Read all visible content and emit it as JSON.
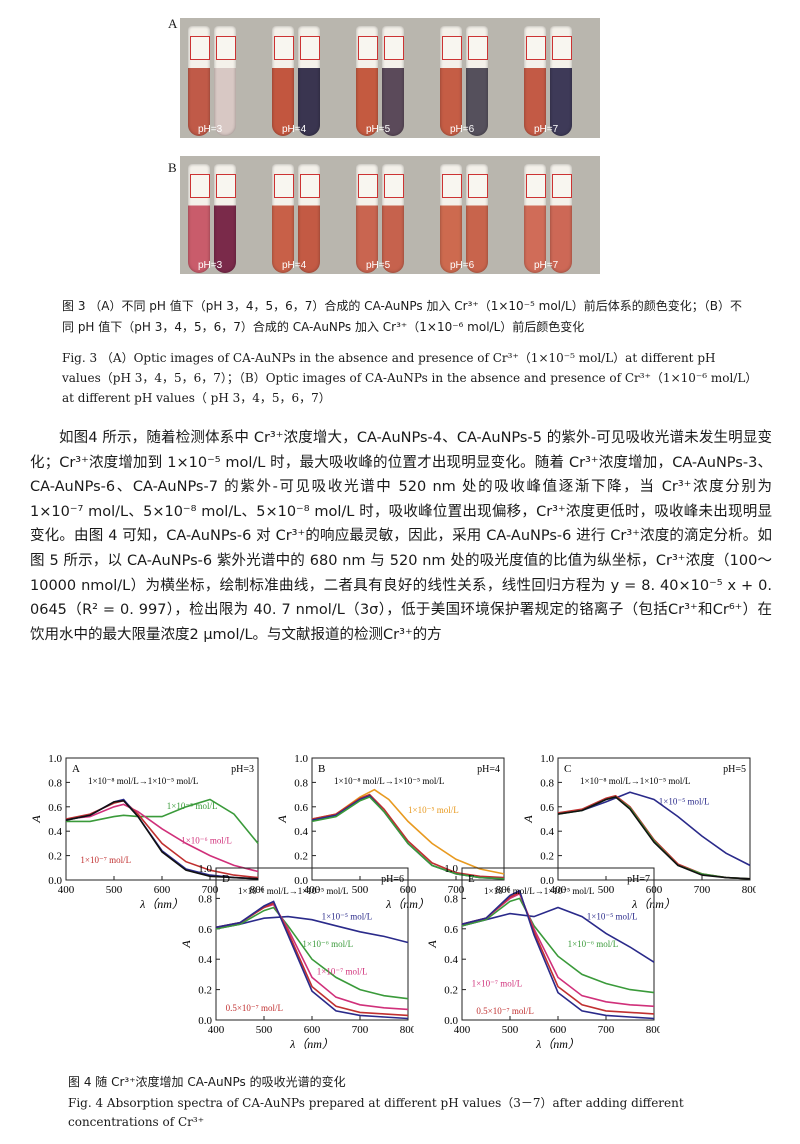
{
  "photos": {
    "A": {
      "label": "A",
      "ph_labels": [
        "pH=3",
        "pH=4",
        "pH=5",
        "pH=6",
        "pH=7"
      ],
      "tube_colors": [
        [
          "#c05a48",
          "#d8c8c4"
        ],
        [
          "#c2563f",
          "#3a3550"
        ],
        [
          "#c45a40",
          "#5b4a5a"
        ],
        [
          "#c55d45",
          "#55505c"
        ],
        [
          "#c35a45",
          "#3e3a58"
        ]
      ]
    },
    "B": {
      "label": "B",
      "ph_labels": [
        "pH=3",
        "pH=4",
        "pH=5",
        "pH=6",
        "pH=7"
      ],
      "tube_colors": [
        [
          "#c95c6b",
          "#7a2a4a"
        ],
        [
          "#c86048",
          "#c35a44"
        ],
        [
          "#c96550",
          "#c6624d"
        ],
        [
          "#cd6a4f",
          "#c8644c"
        ],
        [
          "#d06c58",
          "#cd6856"
        ]
      ]
    }
  },
  "fig3": {
    "zh": "图 3  （A）不同 pH 值下（pH 3，4，5，6，7）合成的 CA-AuNPs 加入 Cr³⁺（1×10⁻⁵ mol/L）前后体系的颜色变化；（B）不同 pH 值下（pH 3，4，5，6，7）合成的 CA-AuNPs 加入 Cr³⁺（1×10⁻⁶ mol/L）前后颜色变化",
    "en": "Fig. 3   （A）Optic images of CA-AuNPs in the absence and presence of Cr³⁺（1×10⁻⁵ mol/L）at different pH values（pH 3，4，5，6，7）；（B）Optic images of CA-AuNPs in the absence and presence of Cr³⁺（1×10⁻⁶ mol/L）at different pH values（ pH 3，4，5，6，7）"
  },
  "body": "如图4 所示，随着检测体系中 Cr³⁺浓度增大，CA-AuNPs-4、CA-AuNPs-5 的紫外-可见吸收光谱未发生明显变化；Cr³⁺浓度增加到 1×10⁻⁵ mol/L 时，最大吸收峰的位置才出现明显变化。随着 Cr³⁺浓度增加，CA-AuNPs-3、CA-AuNPs-6、CA-AuNPs-7 的紫外-可见吸收光谱中 520 nm 处的吸收峰值逐渐下降，当 Cr³⁺浓度分别为 1×10⁻⁷ mol/L、5×10⁻⁸ mol/L、5×10⁻⁸ mol/L 时，吸收峰位置出现偏移，Cr³⁺浓度更低时，吸收峰未出现明显变化。由图 4 可知，CA-AuNPs-6 对 Cr³⁺的响应最灵敏，因此，采用 CA-AuNPs-6 进行 Cr³⁺浓度的滴定分析。如图 5 所示，以 CA-AuNPs-6 紫外光谱中的 680 nm 与 520 nm 处的吸光度值的比值为纵坐标，Cr³⁺浓度（100～10000 nmol/L）为横坐标，绘制标准曲线，二者具有良好的线性关系，线性回归方程为 y = 8. 40×10⁻⁵ x + 0. 0645（R² = 0. 997），检出限为 40. 7 nmol/L（3σ），低于美国环境保护署规定的铬离子（包括Cr³⁺和Cr⁶⁺）在饮用水中的最大限量浓度2 μmol/L。与文献报道的检测Cr³⁺的方",
  "fig4": {
    "zh": "图 4   随 Cr³⁺浓度增加 CA-AuNPs 的吸收光谱的变化",
    "en": "Fig. 4    Absorption spectra of CA-AuNPs prepared at different pH values（3－7）after adding different concentrations of Cr³⁺"
  },
  "axis": {
    "xlabel": "λ（nm）",
    "ylabel": "A",
    "xticks": [
      "400",
      "500",
      "600",
      "700",
      "800"
    ],
    "yticks": [
      "0.0",
      "0.2",
      "0.4",
      "0.6",
      "0.8",
      "1.0"
    ]
  },
  "chart_data": [
    {
      "type": "line",
      "panel": "A",
      "ph": "pH=3",
      "range_label": "1×10⁻⁸ mol/L→1×10⁻⁵ mol/L",
      "xlim": [
        400,
        800
      ],
      "ylim": [
        0,
        1
      ],
      "annotations": [
        {
          "text": "1×10⁻⁵ mol/L",
          "color": "#3a9a3a"
        },
        {
          "text": "1×10⁻⁶ mol/L",
          "color": "#d0307a"
        },
        {
          "text": "1×10⁻⁷ mol/L",
          "color": "#c03030"
        }
      ],
      "series": [
        {
          "color": "#3a9a3a",
          "x": [
            400,
            450,
            500,
            520,
            550,
            600,
            650,
            700,
            750,
            800
          ],
          "y": [
            0.48,
            0.48,
            0.52,
            0.53,
            0.52,
            0.52,
            0.6,
            0.66,
            0.54,
            0.3
          ]
        },
        {
          "color": "#d0307a",
          "x": [
            400,
            450,
            500,
            520,
            550,
            600,
            650,
            700,
            750,
            800
          ],
          "y": [
            0.5,
            0.52,
            0.6,
            0.62,
            0.56,
            0.42,
            0.3,
            0.2,
            0.12,
            0.07
          ]
        },
        {
          "color": "#c03030",
          "x": [
            400,
            450,
            500,
            520,
            550,
            600,
            650,
            700,
            750,
            800
          ],
          "y": [
            0.5,
            0.54,
            0.63,
            0.65,
            0.54,
            0.3,
            0.15,
            0.08,
            0.04,
            0.02
          ]
        },
        {
          "color": "#2a2a8a",
          "x": [
            400,
            450,
            500,
            520,
            550,
            600,
            650,
            700,
            750,
            800
          ],
          "y": [
            0.49,
            0.53,
            0.64,
            0.66,
            0.52,
            0.24,
            0.09,
            0.04,
            0.02,
            0.01
          ]
        },
        {
          "color": "#111111",
          "x": [
            400,
            450,
            500,
            520,
            550,
            600,
            650,
            700,
            750,
            800
          ],
          "y": [
            0.49,
            0.53,
            0.64,
            0.65,
            0.52,
            0.23,
            0.08,
            0.03,
            0.02,
            0.01
          ]
        }
      ]
    },
    {
      "type": "line",
      "panel": "B",
      "ph": "pH=4",
      "range_label": "1×10⁻⁸ mol/L→1×10⁻⁵ mol/L",
      "xlim": [
        400,
        800
      ],
      "ylim": [
        0,
        1
      ],
      "annotations": [
        {
          "text": "1×10⁻⁵ mol/L",
          "color": "#e89a20"
        }
      ],
      "series": [
        {
          "color": "#e89a20",
          "x": [
            400,
            450,
            500,
            530,
            560,
            600,
            650,
            700,
            750,
            800
          ],
          "y": [
            0.5,
            0.54,
            0.68,
            0.74,
            0.66,
            0.48,
            0.3,
            0.17,
            0.09,
            0.05
          ]
        },
        {
          "color": "#c03030",
          "x": [
            400,
            450,
            500,
            520,
            550,
            600,
            650,
            700,
            750,
            800
          ],
          "y": [
            0.5,
            0.54,
            0.67,
            0.7,
            0.58,
            0.32,
            0.14,
            0.06,
            0.03,
            0.02
          ]
        },
        {
          "color": "#2a2a8a",
          "x": [
            400,
            450,
            500,
            520,
            550,
            600,
            650,
            700,
            750,
            800
          ],
          "y": [
            0.49,
            0.53,
            0.66,
            0.69,
            0.56,
            0.3,
            0.12,
            0.05,
            0.02,
            0.01
          ]
        },
        {
          "color": "#3a9a3a",
          "x": [
            400,
            450,
            500,
            520,
            550,
            600,
            650,
            700,
            750,
            800
          ],
          "y": [
            0.48,
            0.52,
            0.65,
            0.68,
            0.56,
            0.3,
            0.12,
            0.05,
            0.02,
            0.01
          ]
        }
      ]
    },
    {
      "type": "line",
      "panel": "C",
      "ph": "pH=5",
      "range_label": "1×10⁻⁸ mol/L→1×10⁻⁵ mol/L",
      "xlim": [
        400,
        800
      ],
      "ylim": [
        0,
        1
      ],
      "annotations": [
        {
          "text": "1×10⁻⁵ mol/L",
          "color": "#2a2a8a"
        }
      ],
      "series": [
        {
          "color": "#2a2a8a",
          "x": [
            400,
            450,
            500,
            550,
            600,
            650,
            700,
            750,
            800
          ],
          "y": [
            0.55,
            0.57,
            0.64,
            0.72,
            0.66,
            0.52,
            0.36,
            0.22,
            0.12
          ]
        },
        {
          "color": "#c03030",
          "x": [
            400,
            450,
            500,
            520,
            550,
            600,
            650,
            700,
            750,
            800
          ],
          "y": [
            0.55,
            0.58,
            0.67,
            0.69,
            0.6,
            0.33,
            0.13,
            0.05,
            0.02,
            0.01
          ]
        },
        {
          "color": "#3a9a3a",
          "x": [
            400,
            450,
            500,
            520,
            550,
            600,
            650,
            700,
            750,
            800
          ],
          "y": [
            0.54,
            0.57,
            0.66,
            0.68,
            0.59,
            0.32,
            0.12,
            0.05,
            0.02,
            0.01
          ]
        },
        {
          "color": "#111111",
          "x": [
            400,
            450,
            500,
            520,
            550,
            600,
            650,
            700,
            750,
            800
          ],
          "y": [
            0.54,
            0.57,
            0.66,
            0.68,
            0.58,
            0.31,
            0.12,
            0.04,
            0.02,
            0.01
          ]
        }
      ]
    },
    {
      "type": "line",
      "panel": "D",
      "ph": "pH=6",
      "range_label": "1×10⁻⁸ mol/L→1×10⁻⁵ mol/L",
      "xlim": [
        400,
        800
      ],
      "ylim": [
        0,
        1
      ],
      "annotations": [
        {
          "text": "1×10⁻⁵ mol/L",
          "color": "#2a2a8a"
        },
        {
          "text": "1×10⁻⁶ mol/L",
          "color": "#3a9a3a"
        },
        {
          "text": "1×10⁻⁷ mol/L",
          "color": "#d0307a"
        },
        {
          "text": "0.5×10⁻⁷ mol/L",
          "color": "#c03030"
        }
      ],
      "series": [
        {
          "color": "#2a2a8a",
          "x": [
            400,
            450,
            500,
            550,
            600,
            650,
            700,
            750,
            800
          ],
          "y": [
            0.6,
            0.63,
            0.67,
            0.68,
            0.66,
            0.62,
            0.58,
            0.55,
            0.51
          ]
        },
        {
          "color": "#3a9a3a",
          "x": [
            400,
            450,
            500,
            520,
            550,
            600,
            650,
            700,
            750,
            800
          ],
          "y": [
            0.6,
            0.63,
            0.72,
            0.74,
            0.62,
            0.4,
            0.28,
            0.2,
            0.16,
            0.14
          ]
        },
        {
          "color": "#d0307a",
          "x": [
            400,
            450,
            500,
            520,
            550,
            600,
            650,
            700,
            750,
            800
          ],
          "y": [
            0.61,
            0.64,
            0.74,
            0.76,
            0.6,
            0.28,
            0.15,
            0.1,
            0.08,
            0.07
          ]
        },
        {
          "color": "#c03030",
          "x": [
            400,
            450,
            500,
            520,
            550,
            600,
            650,
            700,
            750,
            800
          ],
          "y": [
            0.61,
            0.64,
            0.74,
            0.77,
            0.58,
            0.22,
            0.09,
            0.05,
            0.04,
            0.03
          ]
        },
        {
          "color": "#2a2a8a",
          "x": [
            400,
            450,
            500,
            520,
            550,
            600,
            650,
            700,
            750,
            800
          ],
          "y": [
            0.61,
            0.64,
            0.75,
            0.78,
            0.56,
            0.19,
            0.06,
            0.03,
            0.02,
            0.01
          ]
        }
      ]
    },
    {
      "type": "line",
      "panel": "E",
      "ph": "pH=7",
      "range_label": "1×10⁻⁸ mol/L→1×10⁻⁵ mol/L",
      "xlim": [
        400,
        800
      ],
      "ylim": [
        0,
        1
      ],
      "annotations": [
        {
          "text": "1×10⁻⁵ mol/L",
          "color": "#2a2a8a"
        },
        {
          "text": "1×10⁻⁶ mol/L",
          "color": "#3a9a3a"
        },
        {
          "text": "1×10⁻⁷ mol/L",
          "color": "#d0307a"
        },
        {
          "text": "0.5×10⁻⁷ mol/L",
          "color": "#c03030"
        }
      ],
      "series": [
        {
          "color": "#2a2a8a",
          "x": [
            400,
            450,
            500,
            550,
            600,
            650,
            700,
            750,
            800
          ],
          "y": [
            0.62,
            0.66,
            0.7,
            0.68,
            0.74,
            0.68,
            0.57,
            0.48,
            0.38
          ]
        },
        {
          "color": "#3a9a3a",
          "x": [
            400,
            450,
            500,
            520,
            550,
            600,
            650,
            700,
            750,
            800
          ],
          "y": [
            0.62,
            0.66,
            0.78,
            0.8,
            0.62,
            0.42,
            0.3,
            0.24,
            0.2,
            0.18
          ]
        },
        {
          "color": "#d0307a",
          "x": [
            400,
            450,
            500,
            520,
            550,
            600,
            650,
            700,
            750,
            800
          ],
          "y": [
            0.63,
            0.67,
            0.8,
            0.83,
            0.6,
            0.28,
            0.16,
            0.12,
            0.1,
            0.09
          ]
        },
        {
          "color": "#c03030",
          "x": [
            400,
            450,
            500,
            520,
            550,
            600,
            650,
            700,
            750,
            800
          ],
          "y": [
            0.63,
            0.67,
            0.81,
            0.84,
            0.58,
            0.22,
            0.1,
            0.06,
            0.05,
            0.04
          ]
        },
        {
          "color": "#2a2a8a",
          "x": [
            400,
            450,
            500,
            520,
            550,
            600,
            650,
            700,
            750,
            800
          ],
          "y": [
            0.63,
            0.67,
            0.82,
            0.85,
            0.56,
            0.18,
            0.06,
            0.03,
            0.02,
            0.01
          ]
        }
      ]
    }
  ]
}
